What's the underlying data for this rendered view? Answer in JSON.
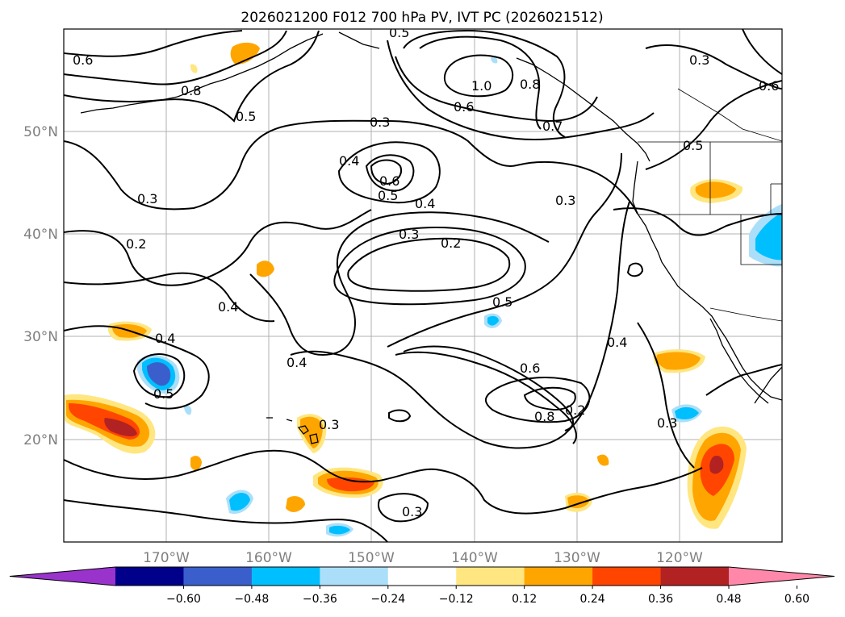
{
  "title": "2026021200 F012 700 hPa PV, IVT PC (2026021512)",
  "map": {
    "lon_labels": [
      "170°W",
      "160°W",
      "150°W",
      "140°W",
      "130°W",
      "120°W"
    ],
    "lat_labels": [
      "50°N",
      "40°N",
      "30°N",
      "20°N"
    ],
    "lon_range": [
      -180,
      -110
    ],
    "lat_range": [
      10,
      60
    ],
    "gridlines": true
  },
  "colorbar": {
    "ticks": [
      "−0.60",
      "−0.48",
      "−0.36",
      "−0.24",
      "−0.12",
      "0.12",
      "0.24",
      "0.36",
      "0.48",
      "0.60"
    ],
    "colors": [
      "#9933cc",
      "#00008b",
      "#3a5fcd",
      "#00bfff",
      "#abdff9",
      "#ffffff",
      "#ffe680",
      "#ffa500",
      "#ff4500",
      "#b22222",
      "#ff88aa"
    ],
    "extend": "both"
  },
  "contour_labels": [
    "0.6",
    "0.8",
    "0.5",
    "0.3",
    "0.4",
    "0.6",
    "0.5",
    "0.3",
    "0.2",
    "0.4",
    "0.3",
    "0.2",
    "0.4",
    "0.4",
    "0.5",
    "0.3",
    "0.4",
    "0.5",
    "0.3",
    "0.6",
    "0.8",
    "0.3",
    "1.0",
    "0.6",
    "0.8",
    "0.7",
    "0.3",
    "0.3",
    "0.6",
    "0.5",
    "0.5",
    "0.4",
    "0.2"
  ]
}
